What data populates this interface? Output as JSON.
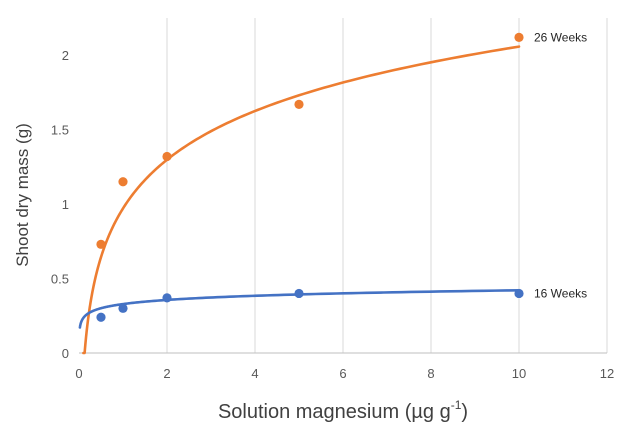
{
  "chart_data": {
    "type": "scatter",
    "title": "",
    "xlabel": "Solution magnesium (µg g",
    "xlabel_superscript": "-1",
    "xlabel_suffix": ")",
    "ylabel": "Shoot dry mass (g)",
    "xlim": [
      0,
      12
    ],
    "ylim": [
      0,
      2.25
    ],
    "x_ticks": [
      "0",
      "2",
      "4",
      "6",
      "8",
      "10",
      "12"
    ],
    "y_ticks": [
      "0",
      "0.5",
      "1",
      "1.5",
      "2"
    ],
    "grid": "vertical",
    "legend": "none (series labels at line ends)",
    "series": [
      {
        "name": "26 Weeks",
        "color": "#ED7D31",
        "points": [
          {
            "x": 0.5,
            "y": 0.73
          },
          {
            "x": 1,
            "y": 1.15
          },
          {
            "x": 2,
            "y": 1.32
          },
          {
            "x": 5,
            "y": 1.67
          },
          {
            "x": 10,
            "y": 2.12
          }
        ],
        "trendline": {
          "type": "logarithmic",
          "a": 0.472,
          "b": 0.971,
          "x_from": 0.1,
          "x_to": 10
        }
      },
      {
        "name": "16 Weeks",
        "color": "#4472C4",
        "points": [
          {
            "x": 0.5,
            "y": 0.24
          },
          {
            "x": 1,
            "y": 0.3
          },
          {
            "x": 2,
            "y": 0.37
          },
          {
            "x": 5,
            "y": 0.4
          },
          {
            "x": 10,
            "y": 0.4
          }
        ],
        "trendline": {
          "type": "logarithmic",
          "a": 0.0402,
          "b": 0.3286,
          "x_from": 0.02,
          "x_to": 10
        }
      }
    ]
  }
}
